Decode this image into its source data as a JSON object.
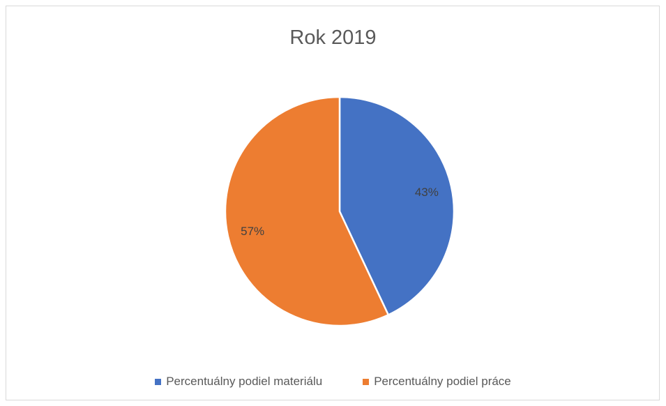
{
  "chart_data": {
    "type": "pie",
    "title": "Rok 2019",
    "categories": [
      "Percentuálny podiel materiálu",
      "Percentuálny podiel práce"
    ],
    "values": [
      43,
      57
    ],
    "data_labels": [
      "43%",
      "57%"
    ],
    "colors": [
      "#4472C4",
      "#ED7D31"
    ],
    "legend_position": "bottom",
    "start_angle": "12 o'clock",
    "direction": "clockwise"
  }
}
